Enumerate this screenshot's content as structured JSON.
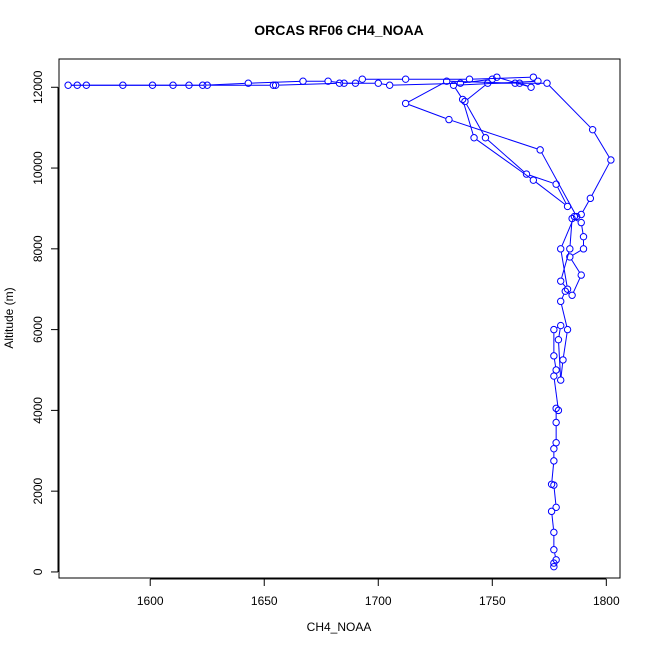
{
  "chart_data": {
    "type": "line",
    "title": "ORCAS RF06 CH4_NOAA",
    "xlabel": "CH4_NOAA",
    "ylabel": "Altitude (m)",
    "xlim": [
      1560,
      1806
    ],
    "ylim": [
      -150,
      12700
    ],
    "x_ticks": [
      1600,
      1650,
      1700,
      1750,
      1800
    ],
    "y_ticks": [
      0,
      2000,
      4000,
      6000,
      8000,
      10000,
      12000
    ],
    "series_color": "#0000ff",
    "markers": "open-circle",
    "grid": false,
    "legend": "none",
    "series": [
      {
        "points": [
          [
            1777,
            130
          ],
          [
            1777,
            220
          ],
          [
            1778,
            300
          ],
          [
            1777,
            550
          ],
          [
            1777,
            980
          ],
          [
            1776,
            1500
          ],
          [
            1778,
            1600
          ],
          [
            1777,
            2150
          ],
          [
            1776,
            2170
          ],
          [
            1777,
            2750
          ],
          [
            1777,
            3050
          ],
          [
            1778,
            3200
          ],
          [
            1778,
            3700
          ],
          [
            1778,
            4050
          ],
          [
            1779,
            4000
          ],
          [
            1777,
            4850
          ],
          [
            1778,
            5000
          ],
          [
            1777,
            5350
          ],
          [
            1777,
            6000
          ],
          [
            1780,
            6100
          ],
          [
            1779,
            5750
          ],
          [
            1780,
            4750
          ],
          [
            1781,
            5250
          ],
          [
            1783,
            6000
          ],
          [
            1780,
            6700
          ],
          [
            1782,
            6950
          ],
          [
            1785,
            6850
          ],
          [
            1789,
            7350
          ],
          [
            1784,
            7800
          ],
          [
            1790,
            8000
          ],
          [
            1790,
            8300
          ],
          [
            1789,
            8650
          ],
          [
            1785,
            8750
          ],
          [
            1784,
            8000
          ],
          [
            1780,
            7200
          ],
          [
            1783,
            7000
          ],
          [
            1780,
            8000
          ],
          [
            1786,
            8800
          ],
          [
            1789,
            8850
          ],
          [
            1793,
            9250
          ],
          [
            1802,
            10200
          ],
          [
            1794,
            10950
          ],
          [
            1774,
            12100
          ],
          [
            1760,
            12100
          ],
          [
            1748,
            12100
          ],
          [
            1738,
            11650
          ],
          [
            1747,
            10750
          ],
          [
            1765,
            9850
          ],
          [
            1778,
            9600
          ],
          [
            1783,
            9050
          ],
          [
            1768,
            9700
          ],
          [
            1742,
            10750
          ],
          [
            1737,
            11700
          ],
          [
            1733,
            12050
          ],
          [
            1770,
            12150
          ],
          [
            1768,
            12250
          ],
          [
            1740,
            12200
          ],
          [
            1712,
            12200
          ],
          [
            1693,
            12200
          ],
          [
            1690,
            12100
          ],
          [
            1685,
            12100
          ],
          [
            1678,
            12150
          ],
          [
            1667,
            12150
          ],
          [
            1643,
            12100
          ],
          [
            1623,
            12050
          ],
          [
            1617,
            12050
          ],
          [
            1601,
            12050
          ],
          [
            1588,
            12050
          ],
          [
            1572,
            12050
          ],
          [
            1568,
            12050
          ],
          [
            1564,
            12050
          ],
          [
            1610,
            12050
          ],
          [
            1625,
            12050
          ],
          [
            1654,
            12050
          ],
          [
            1655,
            12050
          ],
          [
            1683,
            12100
          ],
          [
            1700,
            12100
          ],
          [
            1705,
            12050
          ],
          [
            1736,
            12100
          ],
          [
            1750,
            12200
          ],
          [
            1752,
            12250
          ],
          [
            1767,
            12000
          ],
          [
            1762,
            12100
          ],
          [
            1730,
            12150
          ],
          [
            1712,
            11600
          ],
          [
            1731,
            11200
          ],
          [
            1771,
            10450
          ],
          [
            1787,
            8800
          ]
        ]
      }
    ]
  }
}
